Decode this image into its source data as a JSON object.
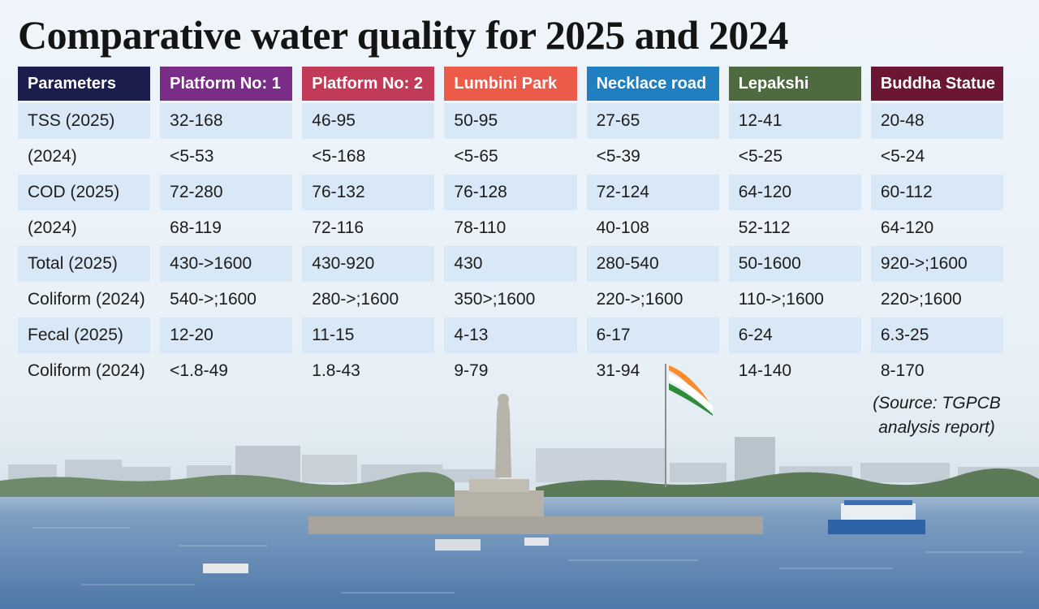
{
  "title": "Comparative water quality for 2025 and 2024",
  "table": {
    "columns": [
      {
        "label": "Parameters",
        "color": "#1b1d4c"
      },
      {
        "label": "Platform No: 1",
        "color": "#7a2d87"
      },
      {
        "label": "Platform No: 2",
        "color": "#c13b59"
      },
      {
        "label": "Lumbini Park",
        "color": "#ec5a49"
      },
      {
        "label": "Necklace road",
        "color": "#1f7fc0"
      },
      {
        "label": "Lepakshi",
        "color": "#4f6a3f"
      },
      {
        "label": "Buddha Statue",
        "color": "#6b1633"
      }
    ],
    "rows": [
      {
        "cells": [
          "TSS (2025)",
          "32-168",
          "46-95",
          "50-95",
          "27-65",
          "12-41",
          "20-48"
        ]
      },
      {
        "cells": [
          "(2024)",
          "<5-53",
          "<5-168",
          "<5-65",
          "<5-39",
          "<5-25",
          "<5-24"
        ]
      },
      {
        "cells": [
          "COD (2025)",
          "72-280",
          "76-132",
          "76-128",
          "72-124",
          "64-120",
          "60-112"
        ]
      },
      {
        "cells": [
          "(2024)",
          "68-119",
          "72-116",
          "78-110",
          "40-108",
          "52-112",
          "64-120"
        ]
      },
      {
        "cells": [
          "Total (2025)",
          "430->1600",
          "430-920",
          "430",
          "280-540",
          "50-1600",
          "920->;1600"
        ]
      },
      {
        "cells": [
          "Coliform (2024)",
          "540->;1600",
          "280->;1600",
          "350>;1600",
          "220->;1600",
          "110->;1600",
          "220>;1600"
        ]
      },
      {
        "cells": [
          "Fecal (2025)",
          "12-20",
          "11-15",
          "4-13",
          "6-17",
          "6-24",
          " 6.3-25"
        ]
      },
      {
        "cells": [
          "Coliform (2024)",
          "<1.8-49",
          "1.8-43",
          "9-79",
          "31-94",
          "14-140",
          "8-170"
        ]
      }
    ]
  },
  "source": {
    "line1": "(Source: TGPCB",
    "line2": "analysis report)"
  },
  "scene": {
    "sky_color": "#e9f1f8",
    "lake_color": "#5f86b3",
    "flag_colors": [
      "#ff8a2a",
      "#ffffff",
      "#2e8b3a"
    ]
  }
}
